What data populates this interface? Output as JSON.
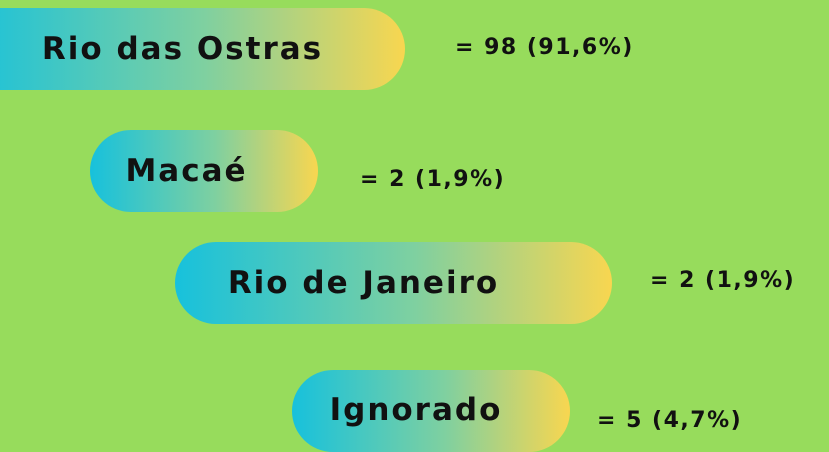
{
  "items": [
    {
      "label": "Rio das Ostras",
      "value": "= 98 (91,6%)"
    },
    {
      "label": "Macaé",
      "value": "= 2 (1,9%)"
    },
    {
      "label": "Rio de Janeiro",
      "value": "= 2 (1,9%)"
    },
    {
      "label": "Ignorado",
      "value": "= 5 (4,7%)"
    }
  ]
}
